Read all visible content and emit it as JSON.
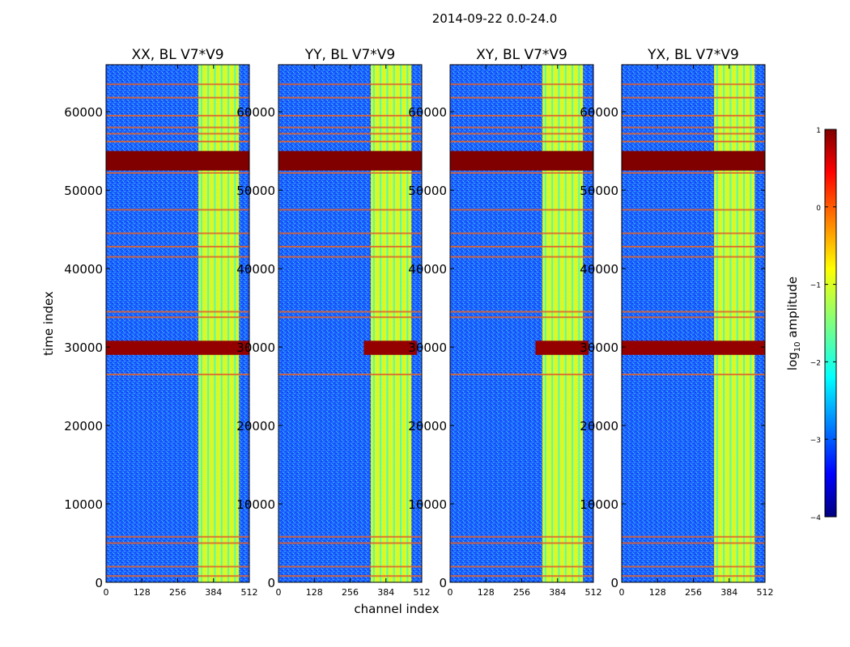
{
  "chart_data": {
    "type": "heatmap",
    "title": "2014-09-22 0.0-24.0",
    "xlabel": "channel index",
    "ylabel": "time index",
    "xlim": [
      0,
      512
    ],
    "ylim": [
      0,
      66000
    ],
    "x_ticks": [
      "0",
      "128",
      "256",
      "384",
      "512"
    ],
    "x_tick_values": [
      0,
      128,
      256,
      384,
      512
    ],
    "y_ticks": [
      "0",
      "10000",
      "20000",
      "30000",
      "40000",
      "50000",
      "60000"
    ],
    "y_tick_values": [
      0,
      10000,
      20000,
      30000,
      40000,
      50000,
      60000
    ],
    "panels": [
      {
        "title": "XX, BL V7*V9",
        "flare_full_width": true
      },
      {
        "title": "YY, BL V7*V9",
        "flare_full_width": false
      },
      {
        "title": "XY, BL V7*V9",
        "flare_full_width": false
      },
      {
        "title": "YX, BL V7*V9",
        "flare_full_width": true
      }
    ],
    "features": {
      "background_log10_amplitude": -2.8,
      "rfi_band_channels": [
        330,
        475
      ],
      "rfi_band_log10_amplitude": -1.0,
      "saturated_time_band": [
        52500,
        55000
      ],
      "saturated_log10_amplitude": 1.0,
      "flare_time_band": [
        29000,
        30800
      ],
      "flagged_rows": [
        800,
        2000,
        5000,
        5800,
        26500,
        33800,
        34500,
        41500,
        42800,
        44500,
        47500,
        52200,
        56200,
        57200,
        58000,
        59500,
        61800,
        63500
      ]
    },
    "colorbar": {
      "label": "log10 amplitude",
      "label_base": "log",
      "label_sub": "10",
      "label_rest": " amplitude",
      "range": [
        -4,
        1
      ],
      "ticks": [
        "1",
        "0",
        "−1",
        "−2",
        "−3",
        "−4"
      ],
      "tick_values": [
        1,
        0,
        -1,
        -2,
        -3,
        -4
      ],
      "colormap": "jet"
    }
  }
}
